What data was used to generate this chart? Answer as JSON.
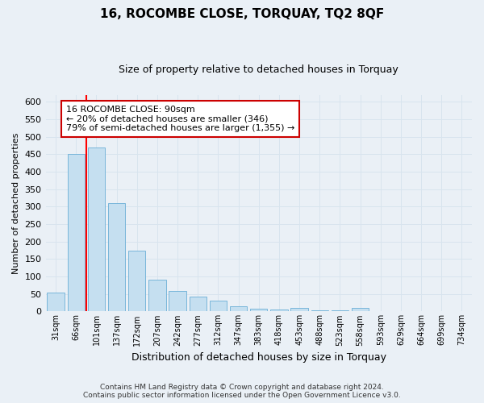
{
  "title": "16, ROCOMBE CLOSE, TORQUAY, TQ2 8QF",
  "subtitle": "Size of property relative to detached houses in Torquay",
  "xlabel": "Distribution of detached houses by size in Torquay",
  "ylabel": "Number of detached properties",
  "bar_labels": [
    "31sqm",
    "66sqm",
    "101sqm",
    "137sqm",
    "172sqm",
    "207sqm",
    "242sqm",
    "277sqm",
    "312sqm",
    "347sqm",
    "383sqm",
    "418sqm",
    "453sqm",
    "488sqm",
    "523sqm",
    "558sqm",
    "593sqm",
    "629sqm",
    "664sqm",
    "699sqm",
    "734sqm"
  ],
  "bar_values": [
    55,
    450,
    470,
    310,
    175,
    90,
    58,
    42,
    32,
    15,
    8,
    5,
    10,
    4,
    3,
    10,
    2,
    0,
    2,
    0,
    2
  ],
  "bar_color": "#c5dff0",
  "bar_edge_color": "#6aaed6",
  "red_line_bar_index": 2,
  "annotation_title": "16 ROCOMBE CLOSE: 90sqm",
  "annotation_line1": "← 20% of detached houses are smaller (346)",
  "annotation_line2": "79% of semi-detached houses are larger (1,355) →",
  "annotation_box_facecolor": "#ffffff",
  "annotation_box_edgecolor": "#cc0000",
  "ylim_min": 0,
  "ylim_max": 620,
  "yticks": [
    0,
    50,
    100,
    150,
    200,
    250,
    300,
    350,
    400,
    450,
    500,
    550,
    600
  ],
  "footnote1": "Contains HM Land Registry data © Crown copyright and database right 2024.",
  "footnote2": "Contains public sector information licensed under the Open Government Licence v3.0.",
  "grid_color": "#d8e4ee",
  "background_color": "#eaf0f6",
  "title_fontsize": 11,
  "subtitle_fontsize": 9,
  "ylabel_fontsize": 8,
  "xlabel_fontsize": 9,
  "tick_fontsize": 8,
  "xtick_fontsize": 7,
  "footnote_fontsize": 6.5
}
